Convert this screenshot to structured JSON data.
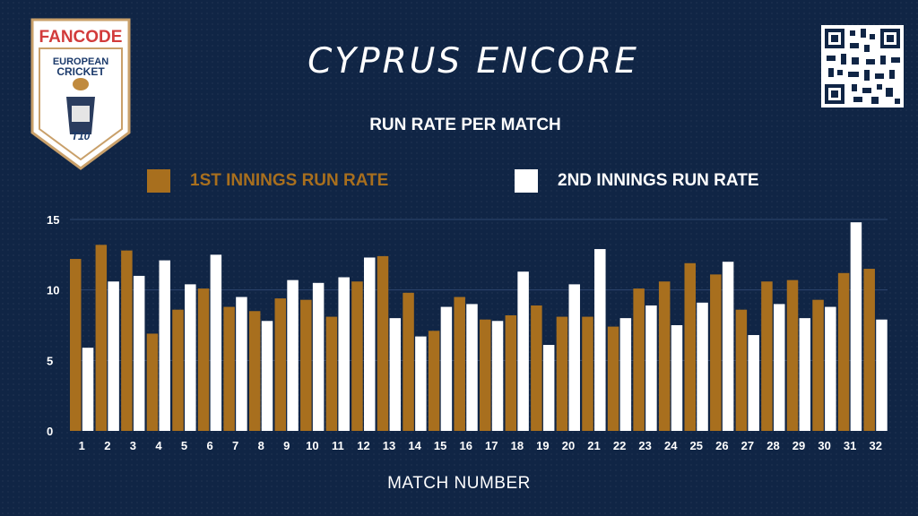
{
  "logo": {
    "brand": "FANCODE",
    "line1": "EUROPEAN",
    "line2": "CRICKET",
    "badge": "T10"
  },
  "title": "CYPRUS ENCORE",
  "colors": {
    "background": "#102545",
    "first_innings": "#A86F1E",
    "second_innings": "#FFFFFF",
    "brand_red": "#D23B3B",
    "brand_blue": "#1B3A6B"
  },
  "qr_icon": "qr-code-icon",
  "chart_data": {
    "type": "bar",
    "title": "RUN RATE PER MATCH",
    "xlabel": "MATCH NUMBER",
    "ylabel": "",
    "ylim": [
      0,
      15
    ],
    "yticks": [
      0,
      5,
      10,
      15
    ],
    "grid": true,
    "legend_placement": "top",
    "categories": [
      "1",
      "2",
      "3",
      "4",
      "5",
      "6",
      "7",
      "8",
      "9",
      "10",
      "11",
      "12",
      "13",
      "14",
      "15",
      "16",
      "17",
      "18",
      "19",
      "20",
      "21",
      "22",
      "23",
      "24",
      "25",
      "26",
      "27",
      "28",
      "29",
      "30",
      "31",
      "32"
    ],
    "series": [
      {
        "name": "1ST INNINGS RUN RATE",
        "color": "#A86F1E",
        "values": [
          12.2,
          13.2,
          12.8,
          6.9,
          8.6,
          10.1,
          8.8,
          8.5,
          9.4,
          9.3,
          8.1,
          10.6,
          12.4,
          9.8,
          7.1,
          9.5,
          7.9,
          8.2,
          8.9,
          8.1,
          8.1,
          7.4,
          10.1,
          10.6,
          11.9,
          11.1,
          8.6,
          10.6,
          10.7,
          9.3,
          11.2,
          11.5
        ]
      },
      {
        "name": "2ND INNINGS RUN RATE",
        "color": "#FFFFFF",
        "values": [
          5.9,
          10.6,
          11.0,
          12.1,
          10.4,
          12.5,
          9.5,
          7.8,
          10.7,
          10.5,
          10.9,
          12.3,
          8.0,
          6.7,
          8.8,
          9.0,
          7.8,
          11.3,
          6.1,
          10.4,
          12.9,
          8.0,
          8.9,
          7.5,
          9.1,
          12.0,
          6.8,
          9.0,
          8.0,
          8.8,
          14.8,
          7.9
        ]
      }
    ]
  }
}
